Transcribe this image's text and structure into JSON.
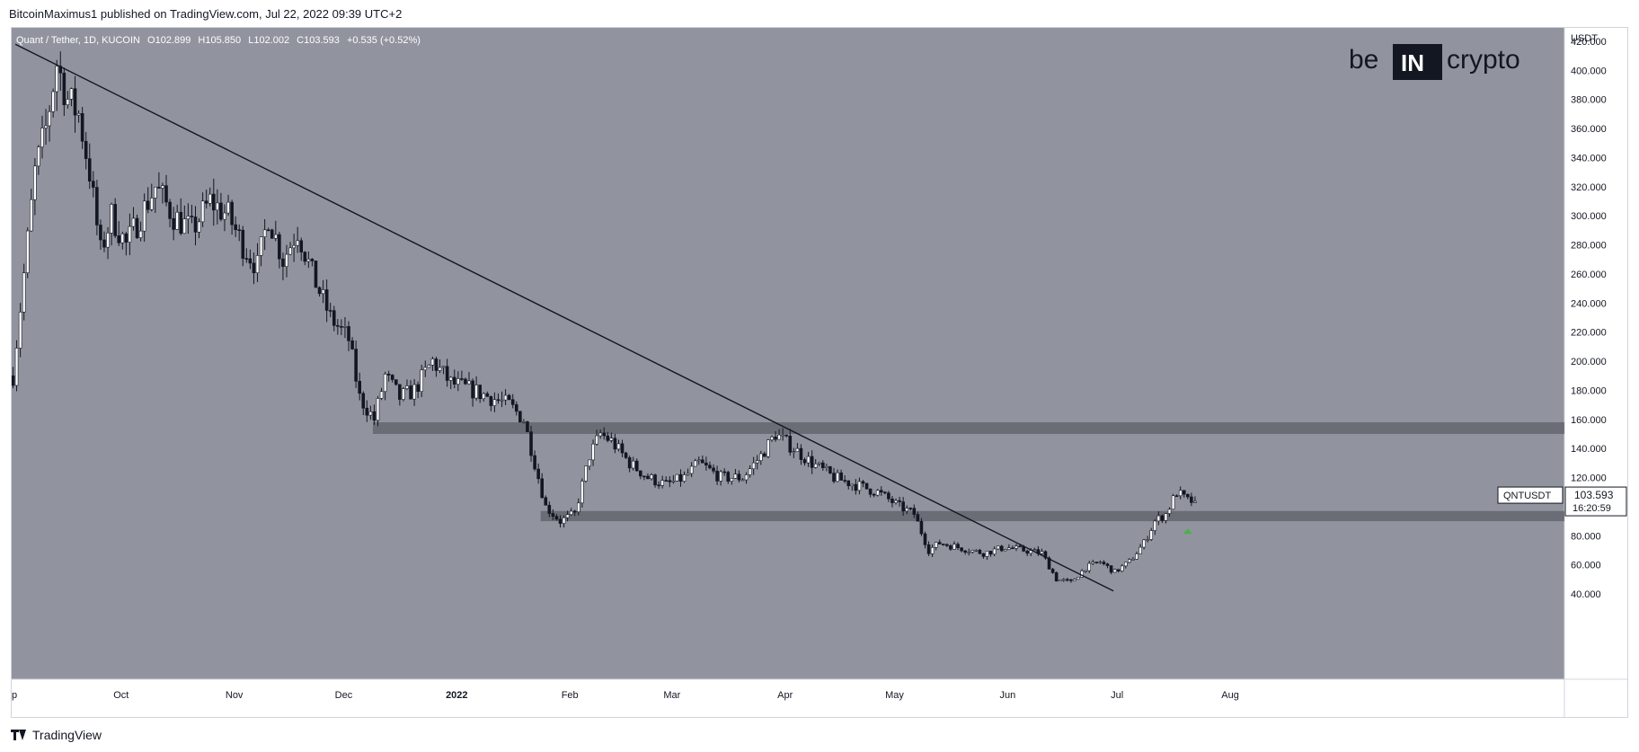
{
  "header": {
    "published": "BitcoinMaximus1 published on TradingView.com, Jul 22, 2022 09:39 UTC+2"
  },
  "chart_data": {
    "type": "candlestick",
    "legend": {
      "symbol": "Quant / Tether, 1D, KUCOIN",
      "o_label": "O",
      "o": "102.899",
      "h_label": "H",
      "h": "105.850",
      "l_label": "L",
      "l": "102.002",
      "c_label": "C",
      "c": "103.593",
      "change": "+0.535 (+0.52%)"
    },
    "y_axis": {
      "unit": "USDT",
      "min": 30,
      "max": 430,
      "ticks": [
        "420.000",
        "400.000",
        "380.000",
        "360.000",
        "340.000",
        "320.000",
        "300.000",
        "280.000",
        "260.000",
        "240.000",
        "220.000",
        "200.000",
        "180.000",
        "160.000",
        "140.000",
        "120.000",
        "100.000",
        "80.000",
        "60.000",
        "40.000"
      ]
    },
    "x_axis": {
      "ticks": [
        {
          "label": "p",
          "date": "2021-09-01"
        },
        {
          "label": "Oct",
          "date": "2021-10-01"
        },
        {
          "label": "Nov",
          "date": "2021-11-01"
        },
        {
          "label": "Dec",
          "date": "2021-12-01"
        },
        {
          "label": "2022",
          "date": "2022-01-01"
        },
        {
          "label": "Feb",
          "date": "2022-02-01"
        },
        {
          "label": "Mar",
          "date": "2022-03-01"
        },
        {
          "label": "Apr",
          "date": "2022-04-01"
        },
        {
          "label": "May",
          "date": "2022-05-01"
        },
        {
          "label": "Jun",
          "date": "2022-06-01"
        },
        {
          "label": "Jul",
          "date": "2022-07-01"
        },
        {
          "label": "Aug",
          "date": "2022-08-01"
        }
      ]
    },
    "price_path": [
      [
        "2021-09-01",
        190
      ],
      [
        "2021-09-04",
        260
      ],
      [
        "2021-09-07",
        330
      ],
      [
        "2021-09-10",
        360
      ],
      [
        "2021-09-13",
        405
      ],
      [
        "2021-09-16",
        380
      ],
      [
        "2021-09-19",
        370
      ],
      [
        "2021-09-22",
        330
      ],
      [
        "2021-09-25",
        275
      ],
      [
        "2021-09-28",
        300
      ],
      [
        "2021-10-02",
        280
      ],
      [
        "2021-10-06",
        300
      ],
      [
        "2021-10-10",
        320
      ],
      [
        "2021-10-15",
        300
      ],
      [
        "2021-10-20",
        290
      ],
      [
        "2021-10-25",
        310
      ],
      [
        "2021-10-30",
        300
      ],
      [
        "2021-11-03",
        280
      ],
      [
        "2021-11-07",
        265
      ],
      [
        "2021-11-10",
        300
      ],
      [
        "2021-11-14",
        270
      ],
      [
        "2021-11-18",
        290
      ],
      [
        "2021-11-22",
        260
      ],
      [
        "2021-11-27",
        230
      ],
      [
        "2021-12-02",
        215
      ],
      [
        "2021-12-05",
        175
      ],
      [
        "2021-12-09",
        160
      ],
      [
        "2021-12-12",
        190
      ],
      [
        "2021-12-16",
        175
      ],
      [
        "2021-12-20",
        180
      ],
      [
        "2021-12-25",
        200
      ],
      [
        "2021-12-30",
        185
      ],
      [
        "2022-01-05",
        180
      ],
      [
        "2022-01-10",
        175
      ],
      [
        "2022-01-15",
        170
      ],
      [
        "2022-01-19",
        160
      ],
      [
        "2022-01-22",
        130
      ],
      [
        "2022-01-25",
        100
      ],
      [
        "2022-01-29",
        90
      ],
      [
        "2022-02-02",
        95
      ],
      [
        "2022-02-06",
        135
      ],
      [
        "2022-02-09",
        150
      ],
      [
        "2022-02-12",
        145
      ],
      [
        "2022-02-17",
        130
      ],
      [
        "2022-02-22",
        120
      ],
      [
        "2022-02-27",
        115
      ],
      [
        "2022-03-04",
        120
      ],
      [
        "2022-03-08",
        130
      ],
      [
        "2022-03-14",
        120
      ],
      [
        "2022-03-20",
        120
      ],
      [
        "2022-03-25",
        135
      ],
      [
        "2022-03-29",
        150
      ],
      [
        "2022-04-03",
        140
      ],
      [
        "2022-04-08",
        130
      ],
      [
        "2022-04-14",
        120
      ],
      [
        "2022-04-20",
        115
      ],
      [
        "2022-04-26",
        110
      ],
      [
        "2022-05-02",
        100
      ],
      [
        "2022-05-06",
        95
      ],
      [
        "2022-05-10",
        70
      ],
      [
        "2022-05-13",
        75
      ],
      [
        "2022-05-18",
        72
      ],
      [
        "2022-05-25",
        68
      ],
      [
        "2022-05-31",
        72
      ],
      [
        "2022-06-05",
        70
      ],
      [
        "2022-06-10",
        68
      ],
      [
        "2022-06-14",
        50
      ],
      [
        "2022-06-18",
        48
      ],
      [
        "2022-06-22",
        58
      ],
      [
        "2022-06-26",
        62
      ],
      [
        "2022-06-30",
        55
      ],
      [
        "2022-07-04",
        62
      ],
      [
        "2022-07-08",
        75
      ],
      [
        "2022-07-11",
        90
      ],
      [
        "2022-07-14",
        95
      ],
      [
        "2022-07-17",
        110
      ],
      [
        "2022-07-20",
        104
      ],
      [
        "2022-07-22",
        103.593
      ]
    ],
    "annotations": {
      "trendline": {
        "from": {
          "date": "2021-09-02",
          "price": 418
        },
        "to": {
          "date": "2022-06-30",
          "price": 42
        }
      },
      "resistance_zone": {
        "from_date": "2021-12-09",
        "low": 150,
        "high": 158
      },
      "support_zone": {
        "from_date": "2022-01-24",
        "low": 90,
        "high": 97
      },
      "current_marker": {
        "date": "2022-07-20",
        "price": 90
      }
    },
    "price_label": {
      "symbol": "QNTUSDT",
      "price": "103.593",
      "countdown": "16:20:59",
      "value": 103.593
    },
    "colors": {
      "background": "#91949e",
      "candle": "#131722",
      "zone": "#5b5d65",
      "arrow": "#4caf50"
    }
  },
  "watermark": {
    "text_left": "be",
    "text_box": "IN",
    "text_right": "crypto"
  },
  "footer": {
    "brand": "TradingView"
  }
}
